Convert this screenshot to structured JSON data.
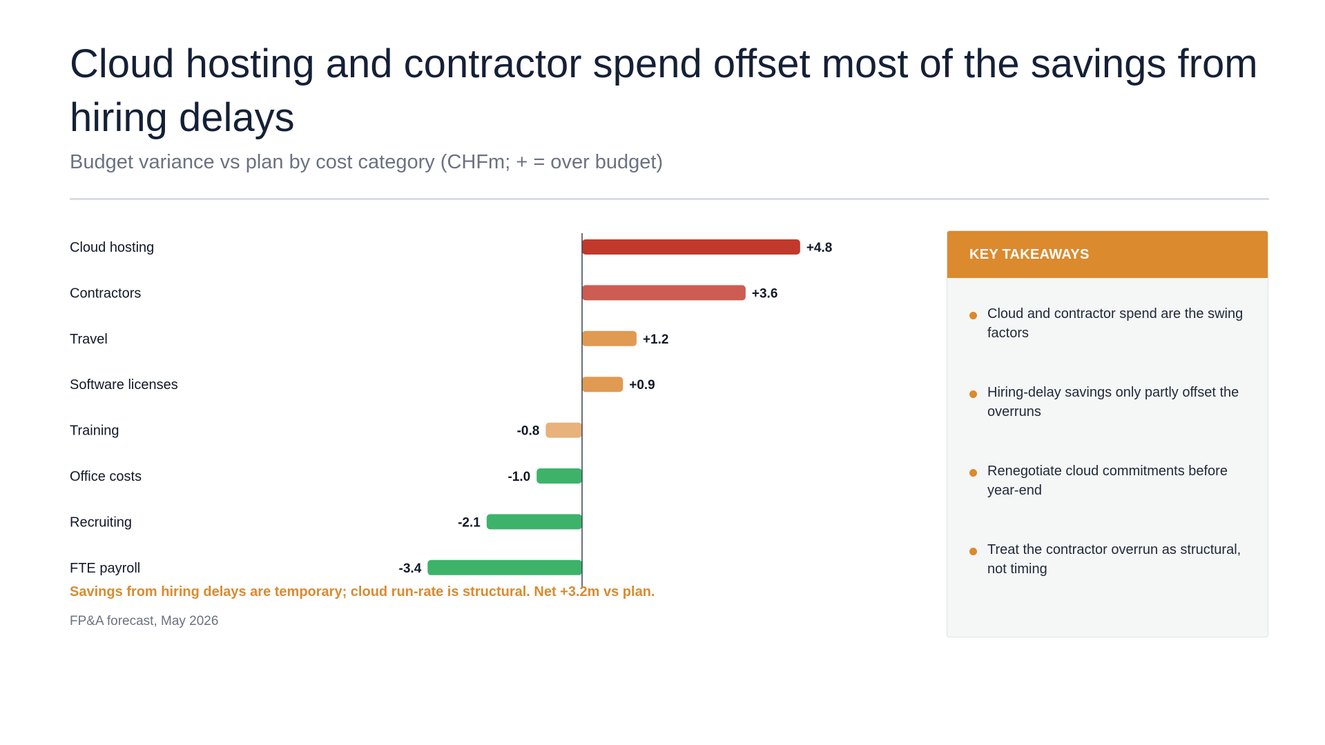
{
  "header": {
    "title": "Cloud hosting and contractor spend offset most of the savings from hiring delays",
    "subtitle": "Budget variance vs plan by cost category (CHFm; + = over budget)"
  },
  "chart_data": {
    "type": "bar",
    "orientation": "horizontal",
    "categories": [
      "Cloud hosting",
      "Contractors",
      "Travel",
      "Software licenses",
      "Training",
      "Office costs",
      "Recruiting",
      "FTE payroll"
    ],
    "values": [
      4.8,
      3.6,
      1.2,
      0.9,
      -0.8,
      -1.0,
      -2.1,
      -3.4
    ],
    "value_labels": [
      "+4.8",
      "+3.6",
      "+1.2",
      "+0.9",
      "-0.8",
      "-1.0",
      "-2.1",
      "-3.4"
    ],
    "bar_colors": [
      "#c0392b",
      "#cd5c53",
      "#e09a52",
      "#e09a52",
      "#e8b27c",
      "#3db36a",
      "#3db36a",
      "#3db36a"
    ],
    "xlim": [
      -6.5,
      6.5
    ],
    "grid": false,
    "zero_line": true
  },
  "footnote": {
    "note": "Savings from hiring delays are temporary; cloud run-rate is structural. Net +3.2m vs plan.",
    "source": "FP&A forecast, May 2026"
  },
  "panel": {
    "title": "KEY TAKEAWAYS",
    "items": [
      "Cloud and contractor spend are the swing factors",
      "Hiring-delay savings only partly offset the overruns",
      "Renegotiate cloud commitments before year-end",
      "Treat the contractor overrun as structural, not timing"
    ]
  },
  "colors": {
    "accent": "#db8a2e",
    "title": "#152036",
    "muted": "#6b7280"
  }
}
